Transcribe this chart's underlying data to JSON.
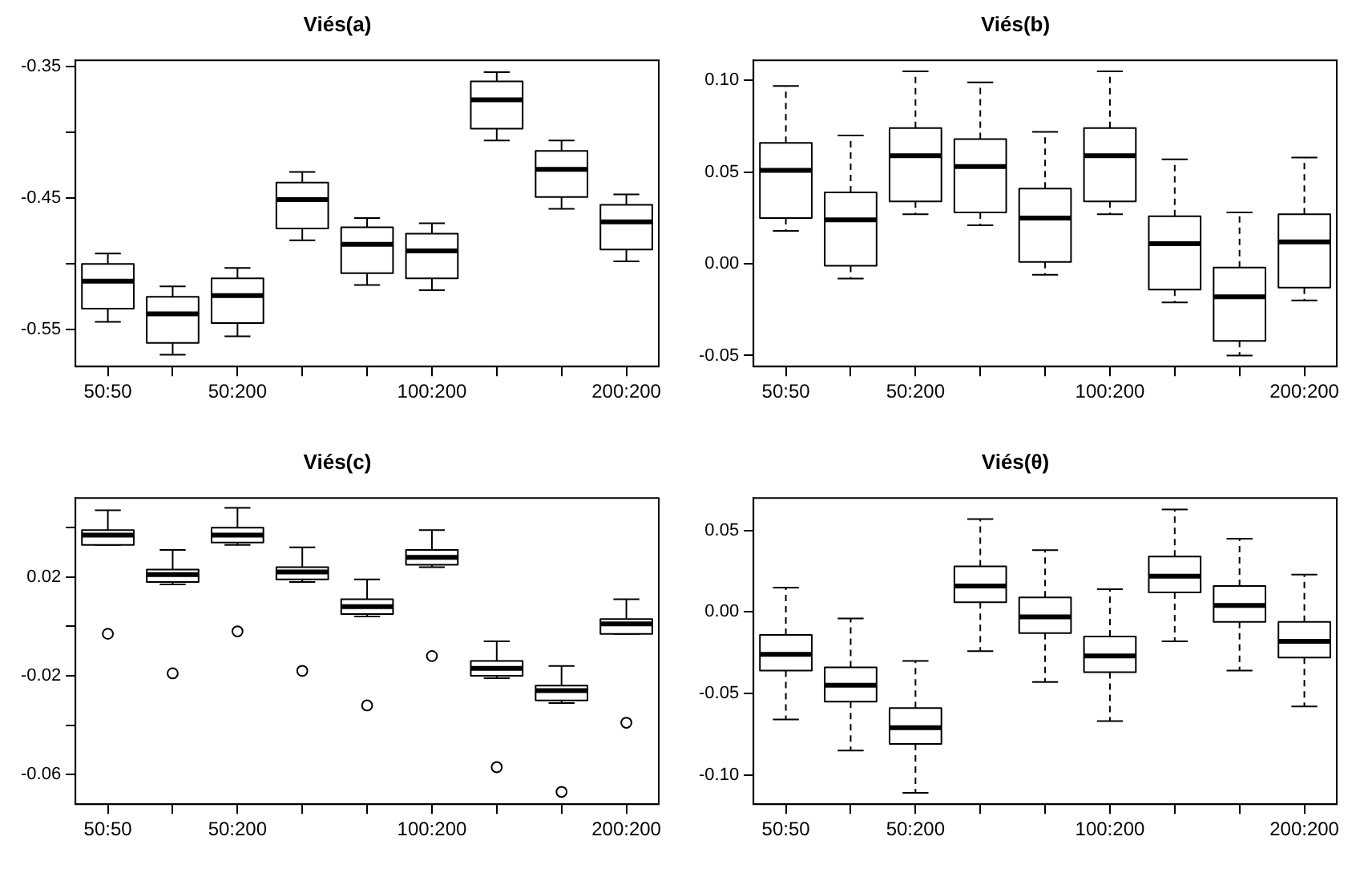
{
  "chart_data": [
    {
      "type": "box",
      "title": "Viés(a)",
      "categories": [
        "50:50",
        null,
        "50:200",
        null,
        null,
        "100:200",
        null,
        null,
        "200:200"
      ],
      "ylim": [
        -0.578,
        -0.345
      ],
      "yticks": [
        {
          "value": -0.35,
          "label": "-0.35"
        },
        {
          "value": -0.4,
          "label": null
        },
        {
          "value": -0.45,
          "label": "-0.45"
        },
        {
          "value": -0.5,
          "label": null
        },
        {
          "value": -0.55,
          "label": "-0.55"
        }
      ],
      "boxes": [
        {
          "low": -0.544,
          "q1": -0.534,
          "median": -0.513,
          "q3": -0.5,
          "high": -0.492
        },
        {
          "low": -0.569,
          "q1": -0.56,
          "median": -0.538,
          "q3": -0.525,
          "high": -0.517
        },
        {
          "low": -0.555,
          "q1": -0.545,
          "median": -0.524,
          "q3": -0.511,
          "high": -0.503
        },
        {
          "low": -0.482,
          "q1": -0.473,
          "median": -0.451,
          "q3": -0.438,
          "high": -0.43
        },
        {
          "low": -0.516,
          "q1": -0.507,
          "median": -0.485,
          "q3": -0.472,
          "high": -0.465
        },
        {
          "low": -0.52,
          "q1": -0.511,
          "median": -0.49,
          "q3": -0.477,
          "high": -0.469
        },
        {
          "low": -0.406,
          "q1": -0.397,
          "median": -0.375,
          "q3": -0.361,
          "high": -0.354
        },
        {
          "low": -0.458,
          "q1": -0.449,
          "median": -0.428,
          "q3": -0.414,
          "high": -0.406
        },
        {
          "low": -0.498,
          "q1": -0.489,
          "median": -0.468,
          "q3": -0.455,
          "high": -0.447
        }
      ]
    },
    {
      "type": "box",
      "title": "Viés(b)",
      "categories": [
        "50:50",
        null,
        "50:200",
        null,
        null,
        "100:200",
        null,
        null,
        "200:200"
      ],
      "ylim": [
        -0.056,
        0.111
      ],
      "yticks": [
        {
          "value": 0.1,
          "label": "0.10"
        },
        {
          "value": 0.05,
          "label": "0.05"
        },
        {
          "value": 0,
          "label": "0.00"
        },
        {
          "value": -0.05,
          "label": "-0.05"
        }
      ],
      "line_style": "dashed",
      "boxes": [
        {
          "low": 0.018,
          "q1": 0.025,
          "median": 0.051,
          "q3": 0.066,
          "high": 0.097
        },
        {
          "low": -0.008,
          "q1": -0.001,
          "median": 0.024,
          "q3": 0.039,
          "high": 0.07
        },
        {
          "low": 0.027,
          "q1": 0.034,
          "median": 0.059,
          "q3": 0.074,
          "high": 0.105
        },
        {
          "low": 0.021,
          "q1": 0.028,
          "median": 0.053,
          "q3": 0.068,
          "high": 0.099
        },
        {
          "low": -0.006,
          "q1": 0.001,
          "median": 0.025,
          "q3": 0.041,
          "high": 0.072
        },
        {
          "low": 0.027,
          "q1": 0.034,
          "median": 0.059,
          "q3": 0.074,
          "high": 0.105
        },
        {
          "low": -0.021,
          "q1": -0.014,
          "median": 0.011,
          "q3": 0.026,
          "high": 0.057
        },
        {
          "low": -0.05,
          "q1": -0.042,
          "median": -0.018,
          "q3": -0.002,
          "high": 0.028
        },
        {
          "low": -0.02,
          "q1": -0.013,
          "median": 0.012,
          "q3": 0.027,
          "high": 0.058
        }
      ]
    },
    {
      "type": "box",
      "title": "Viés(c)",
      "categories": [
        "50:50",
        null,
        "50:200",
        null,
        null,
        "100:200",
        null,
        null,
        "200:200"
      ],
      "ylim": [
        -0.072,
        0.052
      ],
      "yticks": [
        {
          "value": 0.04,
          "label": null
        },
        {
          "value": 0.02,
          "label": "0.02"
        },
        {
          "value": 0,
          "label": null
        },
        {
          "value": -0.02,
          "label": "-0.02"
        },
        {
          "value": -0.04,
          "label": null
        },
        {
          "value": -0.06,
          "label": "-0.06"
        }
      ],
      "marker": "circle",
      "boxes": [
        {
          "low": 0.033,
          "q1": 0.033,
          "median": 0.037,
          "q3": 0.039,
          "high": 0.047,
          "outliers": [
            -0.003
          ]
        },
        {
          "low": 0.017,
          "q1": 0.018,
          "median": 0.021,
          "q3": 0.023,
          "high": 0.031,
          "outliers": [
            -0.019
          ]
        },
        {
          "low": 0.033,
          "q1": 0.034,
          "median": 0.037,
          "q3": 0.04,
          "high": 0.048,
          "outliers": [
            -0.002
          ]
        },
        {
          "low": 0.018,
          "q1": 0.019,
          "median": 0.022,
          "q3": 0.024,
          "high": 0.032,
          "outliers": [
            -0.018
          ]
        },
        {
          "low": 0.004,
          "q1": 0.005,
          "median": 0.008,
          "q3": 0.011,
          "high": 0.019,
          "outliers": [
            -0.032
          ]
        },
        {
          "low": 0.024,
          "q1": 0.025,
          "median": 0.028,
          "q3": 0.031,
          "high": 0.039,
          "outliers": [
            -0.012
          ]
        },
        {
          "low": -0.021,
          "q1": -0.02,
          "median": -0.017,
          "q3": -0.014,
          "high": -0.006,
          "outliers": [
            -0.057
          ]
        },
        {
          "low": -0.031,
          "q1": -0.03,
          "median": -0.026,
          "q3": -0.024,
          "high": -0.016,
          "outliers": [
            -0.067
          ]
        },
        {
          "low": -0.003,
          "q1": -0.003,
          "median": 0.001,
          "q3": 0.003,
          "high": 0.011,
          "outliers": [
            -0.039
          ]
        }
      ]
    },
    {
      "type": "box",
      "title": "Viés(θ)",
      "categories": [
        "50:50",
        null,
        "50:200",
        null,
        null,
        "100:200",
        null,
        null,
        "200:200"
      ],
      "ylim": [
        -0.118,
        0.07
      ],
      "yticks": [
        {
          "value": 0.05,
          "label": "0.05"
        },
        {
          "value": 0,
          "label": "0.00"
        },
        {
          "value": -0.05,
          "label": "-0.05"
        },
        {
          "value": -0.1,
          "label": "-0.10"
        }
      ],
      "line_style": "dashed",
      "boxes": [
        {
          "low": -0.066,
          "q1": -0.036,
          "median": -0.026,
          "q3": -0.014,
          "high": 0.015
        },
        {
          "low": -0.085,
          "q1": -0.055,
          "median": -0.045,
          "q3": -0.034,
          "high": -0.004
        },
        {
          "low": -0.111,
          "q1": -0.081,
          "median": -0.071,
          "q3": -0.059,
          "high": -0.03
        },
        {
          "low": -0.024,
          "q1": 0.006,
          "median": 0.016,
          "q3": 0.028,
          "high": 0.057
        },
        {
          "low": -0.043,
          "q1": -0.013,
          "median": -0.003,
          "q3": 0.009,
          "high": 0.038
        },
        {
          "low": -0.067,
          "q1": -0.037,
          "median": -0.027,
          "q3": -0.015,
          "high": 0.014
        },
        {
          "low": -0.018,
          "q1": 0.012,
          "median": 0.022,
          "q3": 0.034,
          "high": 0.063
        },
        {
          "low": -0.036,
          "q1": -0.006,
          "median": 0.004,
          "q3": 0.016,
          "high": 0.045
        },
        {
          "low": -0.058,
          "q1": -0.028,
          "median": -0.018,
          "q3": -0.006,
          "high": 0.023
        }
      ]
    }
  ]
}
